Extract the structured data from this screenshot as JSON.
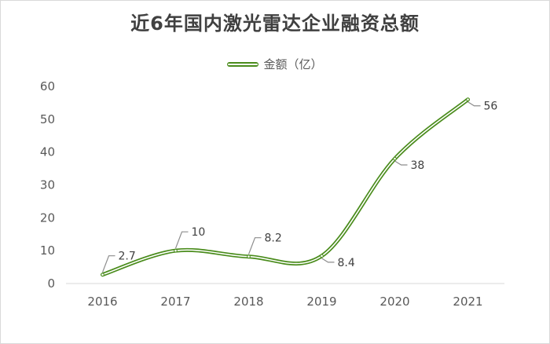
{
  "chart_data": {
    "type": "line",
    "title": "近6年国内激光雷达企业融资总额",
    "categories": [
      "2016",
      "2017",
      "2018",
      "2019",
      "2020",
      "2021"
    ],
    "series": [
      {
        "name": "金额（亿）",
        "values": [
          2.7,
          10,
          8.2,
          8.4,
          38,
          56
        ],
        "color": "#4a8c1c"
      }
    ],
    "data_labels": [
      "2.7",
      "10",
      "8.2",
      "8.4",
      "38",
      "56"
    ],
    "y_ticks": [
      "0",
      "10",
      "20",
      "30",
      "40",
      "50",
      "60"
    ],
    "ylim": [
      0,
      60
    ],
    "grid": false,
    "smooth": true,
    "legend_position": "top"
  }
}
